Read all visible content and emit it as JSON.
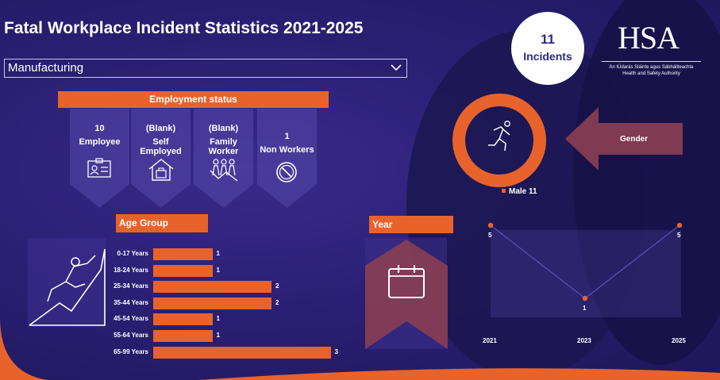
{
  "title": "Fatal Workplace Incident Statistics 2021-2025",
  "filter": {
    "selected": "Manufacturing"
  },
  "incidents": {
    "count": "11",
    "label": "Incidents"
  },
  "logo": {
    "mark": "HSA",
    "subtitle_irish": "An tÚdarás Sláinte agus Sábháilteachta",
    "subtitle_english": "Health and Safety Authority"
  },
  "employment": {
    "header": "Employment status",
    "cards": [
      {
        "value": "10",
        "label": "Employee",
        "icon": "id-badge-icon"
      },
      {
        "value": "(Blank)",
        "label": "Self Employed",
        "icon": "house-briefcase-icon"
      },
      {
        "value": "(Blank)",
        "label": "Family Worker",
        "icon": "family-group-icon"
      },
      {
        "value": "1",
        "label": "Non Workers",
        "icon": "prohibited-icon"
      }
    ]
  },
  "gender": {
    "header": "Gender",
    "legend": "Male 11",
    "male": 11
  },
  "age_group": {
    "header": "Age Group"
  },
  "year": {
    "header": "Year"
  },
  "colors": {
    "accent": "#e8632b",
    "background": "#2b1f75",
    "panel": "#5848aa",
    "marker": "#e8632b"
  },
  "chart_data": [
    {
      "type": "bar",
      "orientation": "horizontal",
      "title": "Age Group",
      "categories": [
        "0-17 Years",
        "18-24 Years",
        "25-34 Years",
        "35-44 Years",
        "45-54 Years",
        "55-64 Years",
        "65-99 Years"
      ],
      "values": [
        1,
        1,
        2,
        2,
        1,
        1,
        3
      ],
      "data_labels": [
        "1",
        "1",
        "2",
        "2",
        "1",
        "1",
        "3"
      ]
    },
    {
      "type": "line",
      "title": "",
      "x": [
        "2021",
        "2023",
        "2025"
      ],
      "y": [
        5,
        1,
        5
      ],
      "data_labels": [
        "5",
        "1",
        "5"
      ]
    },
    {
      "type": "pie",
      "title": "Gender",
      "slices": [
        {
          "name": "Male",
          "value": 11
        }
      ]
    }
  ]
}
